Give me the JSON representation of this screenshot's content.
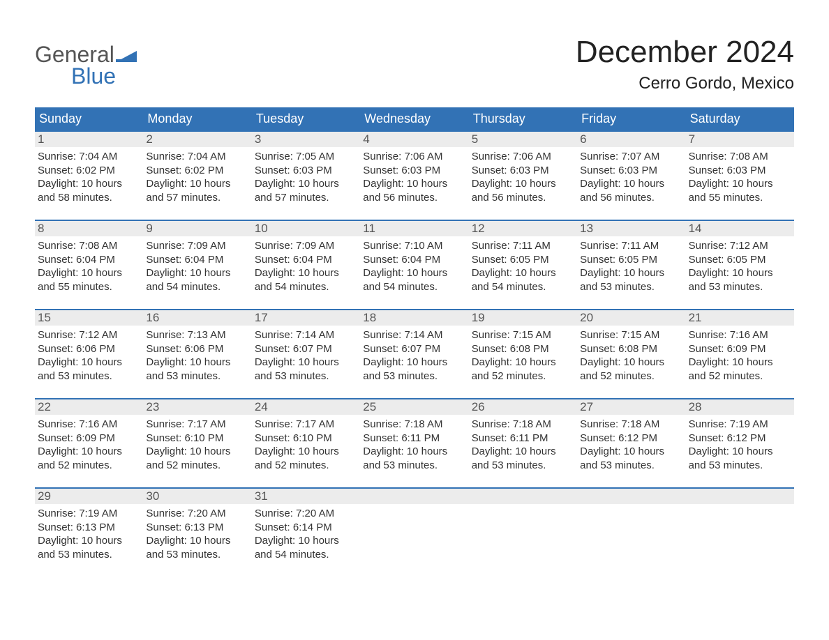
{
  "logo": {
    "top": "General",
    "bottom": "Blue",
    "flag_color": "#3272b5"
  },
  "title": "December 2024",
  "location": "Cerro Gordo, Mexico",
  "colors": {
    "header_bg": "#3272b5",
    "header_text": "#ffffff",
    "daynum_bg": "#ececec",
    "daynum_text": "#555555",
    "body_text": "#333333",
    "rule": "#3272b5",
    "page_bg": "#ffffff"
  },
  "typography": {
    "title_fontsize": 44,
    "location_fontsize": 24,
    "dow_fontsize": 18,
    "daynum_fontsize": 17,
    "cell_fontsize": 15
  },
  "layout": {
    "columns": 7,
    "rows": 5,
    "cell_padding": 4
  },
  "days_of_week": [
    "Sunday",
    "Monday",
    "Tuesday",
    "Wednesday",
    "Thursday",
    "Friday",
    "Saturday"
  ],
  "weeks": [
    [
      {
        "n": "1",
        "sunrise": "7:04 AM",
        "sunset": "6:02 PM",
        "dl1": "10 hours",
        "dl2": "58 minutes."
      },
      {
        "n": "2",
        "sunrise": "7:04 AM",
        "sunset": "6:02 PM",
        "dl1": "10 hours",
        "dl2": "57 minutes."
      },
      {
        "n": "3",
        "sunrise": "7:05 AM",
        "sunset": "6:03 PM",
        "dl1": "10 hours",
        "dl2": "57 minutes."
      },
      {
        "n": "4",
        "sunrise": "7:06 AM",
        "sunset": "6:03 PM",
        "dl1": "10 hours",
        "dl2": "56 minutes."
      },
      {
        "n": "5",
        "sunrise": "7:06 AM",
        "sunset": "6:03 PM",
        "dl1": "10 hours",
        "dl2": "56 minutes."
      },
      {
        "n": "6",
        "sunrise": "7:07 AM",
        "sunset": "6:03 PM",
        "dl1": "10 hours",
        "dl2": "56 minutes."
      },
      {
        "n": "7",
        "sunrise": "7:08 AM",
        "sunset": "6:03 PM",
        "dl1": "10 hours",
        "dl2": "55 minutes."
      }
    ],
    [
      {
        "n": "8",
        "sunrise": "7:08 AM",
        "sunset": "6:04 PM",
        "dl1": "10 hours",
        "dl2": "55 minutes."
      },
      {
        "n": "9",
        "sunrise": "7:09 AM",
        "sunset": "6:04 PM",
        "dl1": "10 hours",
        "dl2": "54 minutes."
      },
      {
        "n": "10",
        "sunrise": "7:09 AM",
        "sunset": "6:04 PM",
        "dl1": "10 hours",
        "dl2": "54 minutes."
      },
      {
        "n": "11",
        "sunrise": "7:10 AM",
        "sunset": "6:04 PM",
        "dl1": "10 hours",
        "dl2": "54 minutes."
      },
      {
        "n": "12",
        "sunrise": "7:11 AM",
        "sunset": "6:05 PM",
        "dl1": "10 hours",
        "dl2": "54 minutes."
      },
      {
        "n": "13",
        "sunrise": "7:11 AM",
        "sunset": "6:05 PM",
        "dl1": "10 hours",
        "dl2": "53 minutes."
      },
      {
        "n": "14",
        "sunrise": "7:12 AM",
        "sunset": "6:05 PM",
        "dl1": "10 hours",
        "dl2": "53 minutes."
      }
    ],
    [
      {
        "n": "15",
        "sunrise": "7:12 AM",
        "sunset": "6:06 PM",
        "dl1": "10 hours",
        "dl2": "53 minutes."
      },
      {
        "n": "16",
        "sunrise": "7:13 AM",
        "sunset": "6:06 PM",
        "dl1": "10 hours",
        "dl2": "53 minutes."
      },
      {
        "n": "17",
        "sunrise": "7:14 AM",
        "sunset": "6:07 PM",
        "dl1": "10 hours",
        "dl2": "53 minutes."
      },
      {
        "n": "18",
        "sunrise": "7:14 AM",
        "sunset": "6:07 PM",
        "dl1": "10 hours",
        "dl2": "53 minutes."
      },
      {
        "n": "19",
        "sunrise": "7:15 AM",
        "sunset": "6:08 PM",
        "dl1": "10 hours",
        "dl2": "52 minutes."
      },
      {
        "n": "20",
        "sunrise": "7:15 AM",
        "sunset": "6:08 PM",
        "dl1": "10 hours",
        "dl2": "52 minutes."
      },
      {
        "n": "21",
        "sunrise": "7:16 AM",
        "sunset": "6:09 PM",
        "dl1": "10 hours",
        "dl2": "52 minutes."
      }
    ],
    [
      {
        "n": "22",
        "sunrise": "7:16 AM",
        "sunset": "6:09 PM",
        "dl1": "10 hours",
        "dl2": "52 minutes."
      },
      {
        "n": "23",
        "sunrise": "7:17 AM",
        "sunset": "6:10 PM",
        "dl1": "10 hours",
        "dl2": "52 minutes."
      },
      {
        "n": "24",
        "sunrise": "7:17 AM",
        "sunset": "6:10 PM",
        "dl1": "10 hours",
        "dl2": "52 minutes."
      },
      {
        "n": "25",
        "sunrise": "7:18 AM",
        "sunset": "6:11 PM",
        "dl1": "10 hours",
        "dl2": "53 minutes."
      },
      {
        "n": "26",
        "sunrise": "7:18 AM",
        "sunset": "6:11 PM",
        "dl1": "10 hours",
        "dl2": "53 minutes."
      },
      {
        "n": "27",
        "sunrise": "7:18 AM",
        "sunset": "6:12 PM",
        "dl1": "10 hours",
        "dl2": "53 minutes."
      },
      {
        "n": "28",
        "sunrise": "7:19 AM",
        "sunset": "6:12 PM",
        "dl1": "10 hours",
        "dl2": "53 minutes."
      }
    ],
    [
      {
        "n": "29",
        "sunrise": "7:19 AM",
        "sunset": "6:13 PM",
        "dl1": "10 hours",
        "dl2": "53 minutes."
      },
      {
        "n": "30",
        "sunrise": "7:20 AM",
        "sunset": "6:13 PM",
        "dl1": "10 hours",
        "dl2": "53 minutes."
      },
      {
        "n": "31",
        "sunrise": "7:20 AM",
        "sunset": "6:14 PM",
        "dl1": "10 hours",
        "dl2": "54 minutes."
      },
      null,
      null,
      null,
      null
    ]
  ],
  "labels": {
    "sunrise": "Sunrise:",
    "sunset": "Sunset:",
    "daylight": "Daylight:",
    "and": "and"
  }
}
